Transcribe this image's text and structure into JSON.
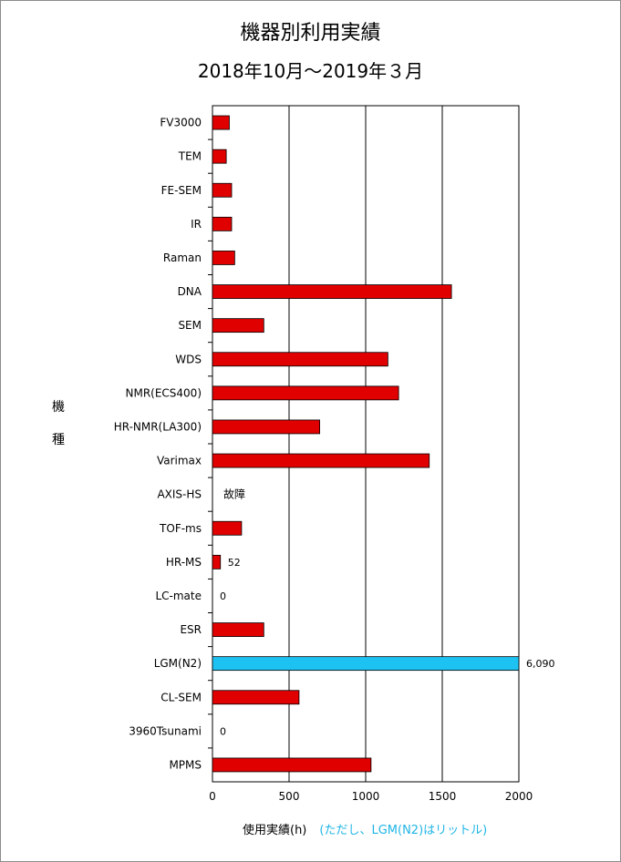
{
  "chart_data": {
    "type": "bar",
    "orientation": "horizontal",
    "title": "機器別利用実績",
    "subtitle": "2018年10月～2019年３月",
    "ylabel_chars": [
      "機",
      "種"
    ],
    "xlabel": "使用実績(h)",
    "xlabel_note": "(ただし、LGM(N2)はリットル)",
    "xlim": [
      0,
      2000
    ],
    "xticks": [
      0,
      500,
      1000,
      1500,
      2000
    ],
    "grid": true,
    "bar_color": "#e00000",
    "highlight_color": "#1ec2f2",
    "categories": [
      "FV3000",
      "TEM",
      "FE-SEM",
      "IR",
      "Raman",
      "DNA",
      "SEM",
      "WDS",
      "NMR(ECS400)",
      "HR-NMR(LA300)",
      "Varimax",
      "AXIS-HS",
      "TOF-ms",
      "HR-MS",
      "LC-mate",
      "ESR",
      "LGM(N2)",
      "CL-SEM",
      "3960Tsunami",
      "MPMS"
    ],
    "values": [
      110,
      90,
      125,
      125,
      145,
      1560,
      335,
      1145,
      1215,
      700,
      1415,
      null,
      190,
      52,
      0,
      335,
      6090,
      565,
      0,
      1035
    ],
    "data_labels": [
      "",
      "",
      "",
      "",
      "",
      "",
      "",
      "",
      "",
      "",
      "",
      "故障",
      "",
      "52",
      "0",
      "",
      "6,090",
      "",
      "0",
      ""
    ],
    "highlight_index": 16
  }
}
